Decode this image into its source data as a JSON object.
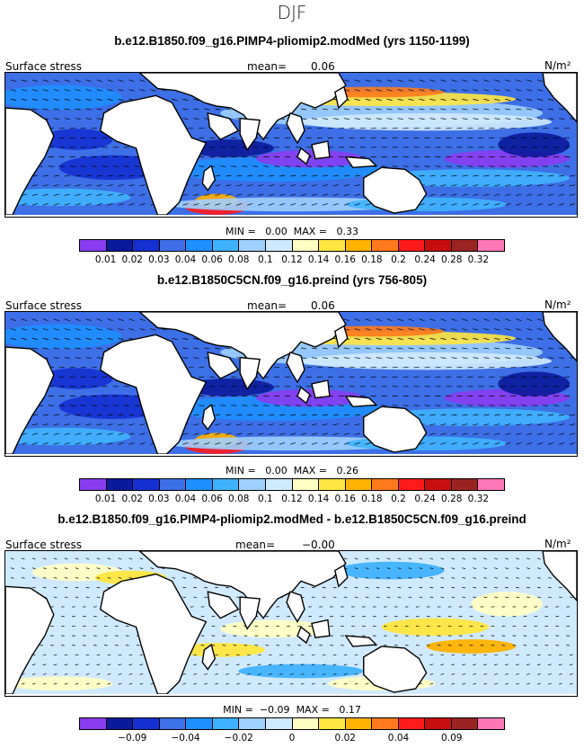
{
  "season": "DJF",
  "units": "N/m²",
  "panels": [
    {
      "title": "b.e12.B1850.f09_g16.PIMP4-pliomip2.modMed (yrs 1150-1199)",
      "field_label": "Surface stress",
      "mean_label": "mean=",
      "mean_value": "0.06",
      "min_label": "MIN =",
      "min_value": "0.00",
      "max_label": "MAX =",
      "max_value": "0.33",
      "palette": "abs"
    },
    {
      "title": "b.e12.B1850C5CN.f09_g16.preind (yrs 756-805)",
      "field_label": "Surface stress",
      "mean_label": "mean=",
      "mean_value": "0.06",
      "min_label": "MIN =",
      "min_value": "0.00",
      "max_label": "MAX =",
      "max_value": "0.26",
      "palette": "abs"
    },
    {
      "title": "b.e12.B1850.f09_g16.PIMP4-pliomip2.modMed - b.e12.B1850C5CN.f09_g16.preind",
      "field_label": "Surface stress",
      "mean_label": "mean=",
      "mean_value": "−0.00",
      "min_label": "MIN =",
      "min_value": "−0.09",
      "max_label": "MAX =",
      "max_value": "0.17",
      "palette": "diff"
    }
  ],
  "colorbar_colors": [
    "#8a3cf0",
    "#0b1a9a",
    "#1430d2",
    "#3d6fe6",
    "#1e8fff",
    "#3fb2ff",
    "#9fd0ff",
    "#cfeaff",
    "#ffffc4",
    "#ffe640",
    "#ffb300",
    "#ff7a1a",
    "#ff1a1a",
    "#c80f0f",
    "#9c2323",
    "#ff77b8"
  ],
  "colorbar_abs_ticks": [
    "0.01",
    "0.02",
    "0.03",
    "0.04",
    "0.06",
    "0.08",
    "0.1",
    "0.12",
    "0.14",
    "0.16",
    "0.18",
    "0.2",
    "0.24",
    "0.28",
    "0.32"
  ],
  "colorbar_diff_ticks": [
    "−0.09",
    "−0.04",
    "−0.02",
    "0",
    "0.02",
    "0.04",
    "0.09"
  ]
}
